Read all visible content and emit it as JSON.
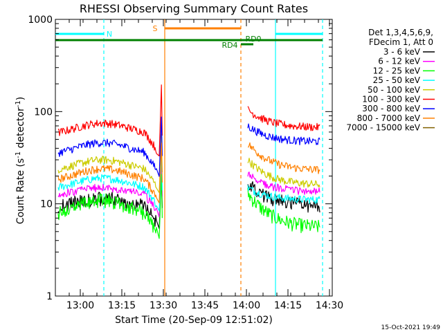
{
  "chart_data": {
    "type": "line",
    "title": "RHESSI Observing Summary Count Rates",
    "xlabel": "Start Time (20-Sep-09 12:51:02)",
    "ylabel": "Count Rate (s",
    "ylabel_sup": "-1",
    "ylabel_tail": " detector",
    "ylabel_tail_sup": "-1",
    "ylabel_close": ")",
    "y_scale": "log",
    "ylim": [
      1,
      1000
    ],
    "xlim_minutes": [
      0,
      100
    ],
    "x_tick_labels": [
      {
        "label": "13:00",
        "minutes": 9
      },
      {
        "label": "13:15",
        "minutes": 24
      },
      {
        "label": "13:30",
        "minutes": 39
      },
      {
        "label": "13:45",
        "minutes": 54
      },
      {
        "label": "14:00",
        "minutes": 69
      },
      {
        "label": "14:15",
        "minutes": 84
      },
      {
        "label": "14:30",
        "minutes": 99
      }
    ],
    "y_tick_labels": [
      {
        "label": "1",
        "value": 1
      },
      {
        "label": "10",
        "value": 10
      },
      {
        "label": "100",
        "value": 100
      },
      {
        "label": "1000",
        "value": 1000
      }
    ],
    "legend_header": [
      "Det 1,3,4,5,6,9,",
      "FDecim 1, Att 0"
    ],
    "legend_position": "right",
    "series": [
      {
        "name": "3 - 6 keV",
        "color": "#000000",
        "pre_edge": 9.0,
        "pre_peak": 11.5,
        "post_start": 17.0,
        "post_end": 9.5
      },
      {
        "name": "6 - 12 keV",
        "color": "#ff00ff",
        "pre_edge": 12.0,
        "pre_peak": 15.0,
        "post_start": 21.0,
        "post_end": 13.5
      },
      {
        "name": "12 - 25 keV",
        "color": "#00ff00",
        "pre_edge": 7.0,
        "pre_peak": 11.0,
        "post_start": 13.0,
        "post_end": 5.5
      },
      {
        "name": "25 - 50 keV",
        "color": "#00ffff",
        "pre_edge": 14.0,
        "pre_peak": 19.0,
        "post_start": 15.0,
        "post_end": 11.0
      },
      {
        "name": "50 - 100 keV",
        "color": "#cccc00",
        "pre_edge": 22.0,
        "pre_peak": 30.0,
        "post_start": 30.0,
        "post_end": 16.0
      },
      {
        "name": "100 - 300 keV",
        "color": "#ff0000",
        "pre_edge": 55.0,
        "pre_peak": 75.0,
        "post_start": 105.0,
        "post_end": 67.0
      },
      {
        "name": "300 - 800 keV",
        "color": "#0000ff",
        "pre_edge": 33.0,
        "pre_peak": 46.0,
        "post_start": 70.0,
        "post_end": 47.0
      },
      {
        "name": "800 - 7000 keV",
        "color": "#ff8000",
        "pre_edge": 17.0,
        "pre_peak": 24.0,
        "post_start": 45.0,
        "post_end": 23.0
      },
      {
        "name": "7000 - 15000 keV",
        "color": "#806000",
        "pre_edge": 0,
        "pre_peak": 0,
        "post_start": 0,
        "post_end": 0
      }
    ],
    "flag_bars": [
      {
        "label": "N",
        "color": "#00ffff",
        "segments": [
          [
            0,
            17.5
          ],
          [
            79.5,
            96.5
          ]
        ]
      },
      {
        "label": "S",
        "color": "#ff8000",
        "segments": [
          [
            39.5,
            67
          ]
        ]
      },
      {
        "label": "RD0",
        "color": "#008000",
        "segments": [
          [
            0,
            96.5
          ]
        ]
      },
      {
        "label": "RD4",
        "color": "#008000",
        "segments": [
          [
            67,
            71.5
          ]
        ]
      }
    ],
    "vlines": [
      {
        "color": "#00ffff",
        "style": "dashed",
        "minutes": 17.5
      },
      {
        "color": "#ff8000",
        "style": "solid",
        "minutes": 39.5
      },
      {
        "color": "#ff8000",
        "style": "dashed",
        "minutes": 67.0
      },
      {
        "color": "#00ffff",
        "style": "solid",
        "minutes": 79.5
      },
      {
        "color": "#00ffff",
        "style": "dashed",
        "minutes": 96.5
      }
    ],
    "timestamp": "15-Oct-2021 19:49"
  }
}
